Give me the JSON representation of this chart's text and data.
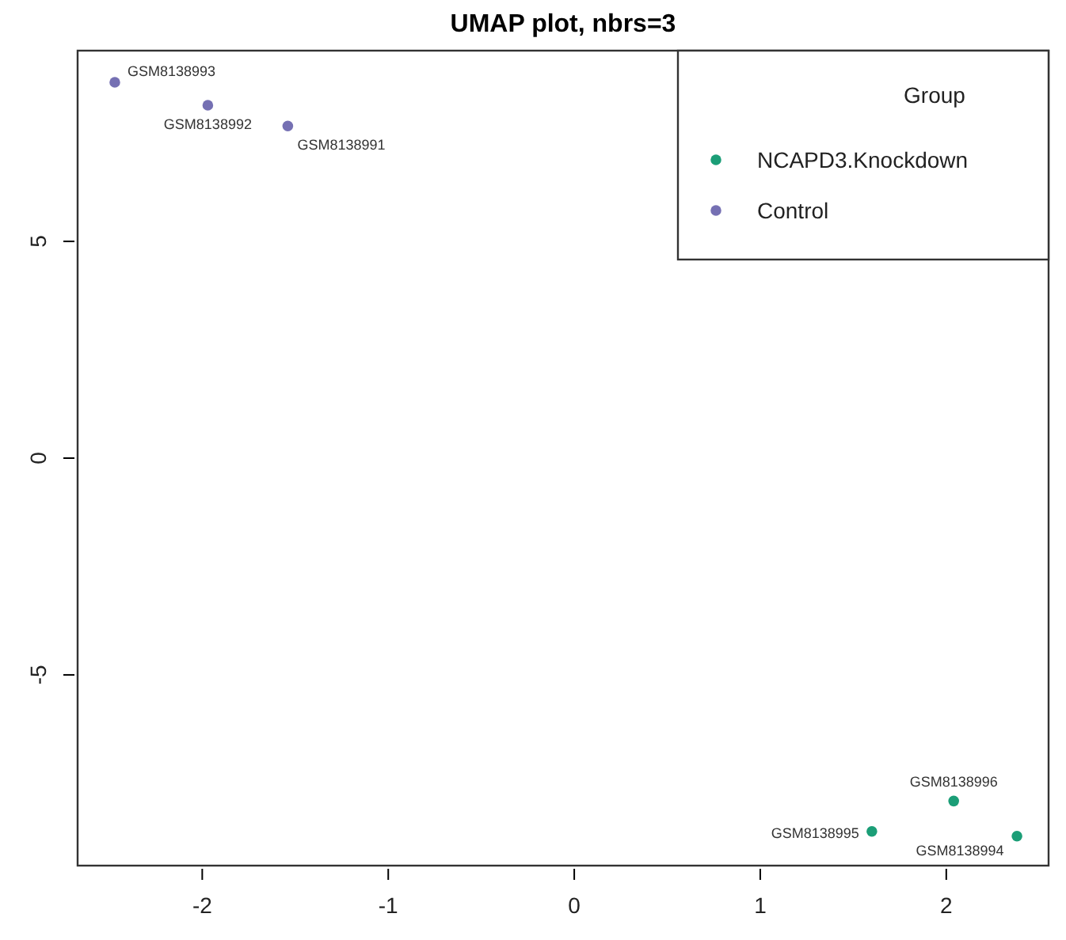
{
  "chart_data": {
    "type": "scatter",
    "title": "UMAP plot, nbrs=3",
    "legend_title": "Group",
    "legend": "top right",
    "marker": "circle",
    "grid": false,
    "xlim": [
      -2.67,
      2.55
    ],
    "xticks": [
      -2,
      -1,
      0,
      1,
      2
    ],
    "ylim": [
      -9.4,
      9.4
    ],
    "yticks": [
      -5,
      0,
      5
    ],
    "series": [
      {
        "name": "NCAPD3.Knockdown",
        "color": "#1b9e77",
        "x": [
          2.38,
          1.6,
          2.04
        ],
        "values": [
          -8.72,
          -8.61,
          -7.91
        ]
      },
      {
        "name": "Control",
        "color": "#7570b3",
        "x": [
          -1.54,
          -1.97,
          -2.47
        ],
        "values": [
          7.66,
          8.14,
          8.67
        ]
      }
    ],
    "annotations": [
      {
        "text": "GSM8138994",
        "x": 2.38,
        "y": -8.72
      },
      {
        "text": "GSM8138995",
        "x": 1.6,
        "y": -8.61
      },
      {
        "text": "GSM8138996",
        "x": 2.04,
        "y": -7.91
      },
      {
        "text": "GSM8138991",
        "x": -1.54,
        "y": 7.66
      },
      {
        "text": "GSM8138992",
        "x": -1.97,
        "y": 8.14
      },
      {
        "text": "GSM8138993",
        "x": -2.47,
        "y": 8.67
      }
    ]
  }
}
